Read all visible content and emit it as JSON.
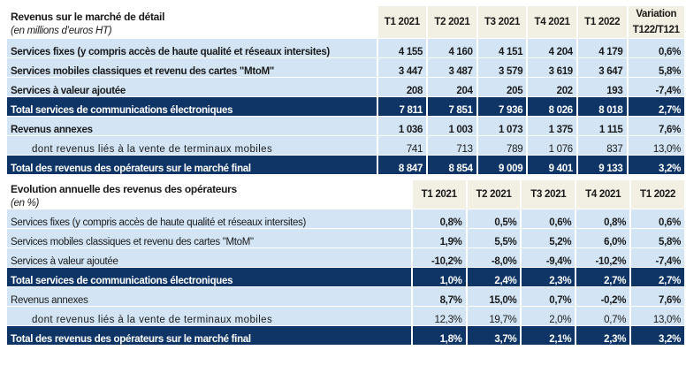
{
  "table1": {
    "title": "Revenus sur le marché de détail",
    "subtitle": "(en millions d’euros HT)",
    "columns": [
      "T1 2021",
      "T2 2021",
      "T3 2021",
      "T4 2021",
      "T1 2022",
      "Variation T122/T121"
    ],
    "rows": [
      {
        "label": "Services fixes (y compris accès de haute qualité et réseaux intersites)",
        "values": [
          "4 155",
          "4 160",
          "4 151",
          "4 204",
          "4 179",
          "0,6%"
        ]
      },
      {
        "label": "Services mobiles classiques et revenu des cartes \"MtoM\"",
        "values": [
          "3 447",
          "3 487",
          "3 579",
          "3 619",
          "3 647",
          "5,8%"
        ]
      },
      {
        "label": "Services à valeur ajoutée",
        "values": [
          "208",
          "204",
          "205",
          "202",
          "193",
          "-7,4%"
        ]
      },
      {
        "label": "Total services de communications électroniques",
        "values": [
          "7 811",
          "7 851",
          "7 936",
          "8 026",
          "8 018",
          "2,7%"
        ]
      },
      {
        "label": "Revenus annexes",
        "values": [
          "1 036",
          "1 003",
          "1 073",
          "1 375",
          "1 115",
          "7,6%"
        ]
      },
      {
        "label": "dont revenus liés à la vente de terminaux mobiles",
        "values": [
          "741",
          "713",
          "789",
          "1 076",
          "837",
          "13,0%"
        ]
      },
      {
        "label": "Total des revenus des opérateurs sur le marché final",
        "values": [
          "8 847",
          "8 854",
          "9 009",
          "9 401",
          "9 133",
          "3,2%"
        ]
      }
    ]
  },
  "table2": {
    "title": "Evolution annuelle des revenus des opérateurs",
    "subtitle": "(en %)",
    "columns": [
      "T1 2021",
      "T2 2021",
      "T3 2021",
      "T4 2021",
      "T1 2022"
    ],
    "rows": [
      {
        "label": "Services fixes (y compris accès de haute qualité et réseaux intersites)",
        "values": [
          "0,8%",
          "0,5%",
          "0,6%",
          "0,8%",
          "0,6%"
        ]
      },
      {
        "label": "Services mobiles classiques et revenu des cartes \"MtoM\"",
        "values": [
          "1,9%",
          "5,5%",
          "5,2%",
          "6,0%",
          "5,8%"
        ]
      },
      {
        "label": "Services à valeur ajoutée",
        "values": [
          "-10,2%",
          "-8,0%",
          "-9,4%",
          "-10,2%",
          "-7,4%"
        ]
      },
      {
        "label": "Total services de communications électroniques",
        "values": [
          "1,0%",
          "2,4%",
          "2,3%",
          "2,7%",
          "2,7%"
        ]
      },
      {
        "label": "Revenus annexes",
        "values": [
          "8,7%",
          "15,0%",
          "0,7%",
          "-0,2%",
          "7,6%"
        ]
      },
      {
        "label": "dont revenus liés à la vente de terminaux mobiles",
        "values": [
          "12,3%",
          "19,7%",
          "2,0%",
          "0,7%",
          "13,0%"
        ]
      },
      {
        "label": "Total des revenus des opérateurs sur le marché final",
        "values": [
          "1,8%",
          "3,7%",
          "2,1%",
          "2,3%",
          "3,2%"
        ]
      }
    ]
  },
  "colors": {
    "row_bg": "#d3e5f5",
    "total_bg": "#0f3567",
    "header_bg": "#f2efe3"
  }
}
